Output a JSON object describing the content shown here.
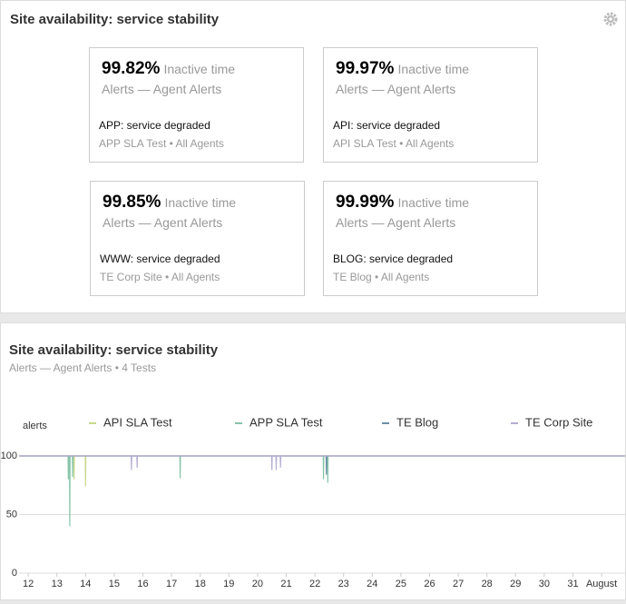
{
  "top_panel": {
    "title": "Site availability: service stability",
    "cards": [
      {
        "value": "99.82%",
        "label": "Inactive time",
        "source": "Alerts — Agent Alerts",
        "status": "APP: service degraded",
        "test": "APP SLA Test • All Agents"
      },
      {
        "value": "99.97%",
        "label": "Inactive time",
        "source": "Alerts — Agent Alerts",
        "status": "API: service degraded",
        "test": "API SLA Test • All Agents"
      },
      {
        "value": "99.85%",
        "label": "Inactive time",
        "source": "Alerts — Agent Alerts",
        "status": "WWW: service degraded",
        "test": "TE Corp Site • All Agents"
      },
      {
        "value": "99.99%",
        "label": "Inactive time",
        "source": "Alerts — Agent Alerts",
        "status": "BLOG: service degraded",
        "test": "TE Blog • All Agents"
      }
    ]
  },
  "chart_data": {
    "type": "line",
    "title": "Site availability: service stability",
    "subtitle": "Alerts — Agent Alerts • 4 Tests",
    "ylabel": "alerts",
    "xlim": [
      11.68,
      32.82
    ],
    "xticks": [
      12,
      13,
      14,
      15,
      16,
      17,
      18,
      19,
      20,
      21,
      22,
      23,
      24,
      25,
      26,
      27,
      28,
      29,
      30,
      31,
      {
        "value": 32,
        "label": "August"
      }
    ],
    "ylim": [
      0,
      100
    ],
    "yticks": [
      0,
      50,
      100
    ],
    "grid": true,
    "series": [
      {
        "name": "API SLA Test",
        "color": "#c8d98c",
        "x": [
          11.68,
          13.59,
          13.6,
          13.61,
          13.99,
          14.0,
          14.01,
          32.82
        ],
        "values": [
          100,
          100,
          80,
          100,
          100,
          74,
          100,
          100
        ]
      },
      {
        "name": "APP SLA Test",
        "color": "#86c4a9",
        "x": [
          11.68,
          13.39,
          13.4,
          13.41,
          13.44,
          13.45,
          13.46,
          13.54,
          13.55,
          13.56,
          17.29,
          17.3,
          17.31,
          22.29,
          22.3,
          22.31,
          22.44,
          22.45,
          22.46,
          32.82
        ],
        "values": [
          100,
          100,
          80,
          100,
          100,
          40,
          100,
          100,
          82,
          100,
          100,
          81,
          100,
          100,
          80,
          100,
          100,
          77,
          100,
          100
        ]
      },
      {
        "name": "TE Blog",
        "color": "#6b8ea8",
        "x": [
          11.68,
          22.39,
          22.4,
          22.41,
          32.82
        ],
        "values": [
          100,
          100,
          84,
          100,
          100
        ]
      },
      {
        "name": "TE Corp Site",
        "color": "#b5acd3",
        "x": [
          11.68,
          15.59,
          15.6,
          15.61,
          15.79,
          15.8,
          15.81,
          20.49,
          20.5,
          20.51,
          20.64,
          20.65,
          20.66,
          20.79,
          20.8,
          20.81,
          32.82
        ],
        "values": [
          100,
          100,
          88,
          100,
          100,
          90,
          100,
          100,
          88,
          100,
          100,
          88,
          100,
          100,
          90,
          100,
          100
        ]
      }
    ]
  }
}
